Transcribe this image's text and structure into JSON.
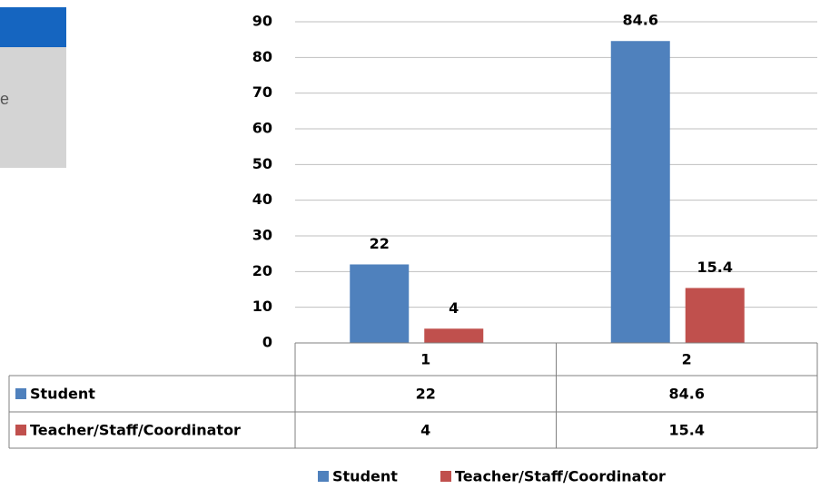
{
  "overlay": {
    "text": "e"
  },
  "chart_data": {
    "type": "bar",
    "categories": [
      "1",
      "2"
    ],
    "series": [
      {
        "name": "Student",
        "color": "#4f81bd",
        "values": [
          22,
          84.6
        ]
      },
      {
        "name": "Teacher/Staff/Coordinator",
        "color": "#c0504d",
        "values": [
          4,
          15.4
        ]
      }
    ],
    "ylim": [
      0,
      90
    ],
    "yticks": [
      0,
      10,
      20,
      30,
      40,
      50,
      60,
      70,
      80,
      90
    ],
    "grid": true,
    "legend": "bottom",
    "data_table": true
  }
}
